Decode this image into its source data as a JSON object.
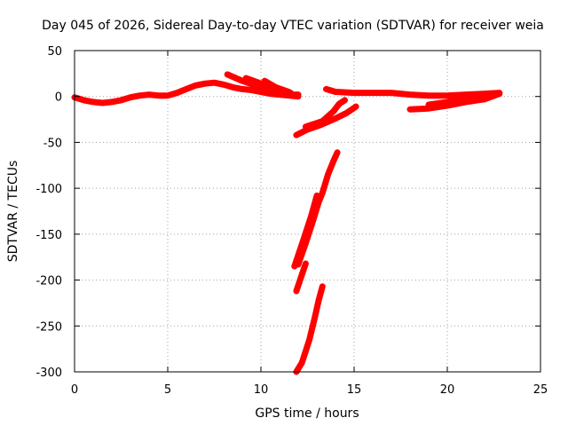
{
  "chart_data": {
    "type": "line",
    "title": "Day 045 of 2026, Sidereal Day-to-day VTEC variation (SDTVAR) for receiver weia",
    "xlabel": "GPS time / hours",
    "ylabel": "SDTVAR / TECUs",
    "xlim": [
      0,
      25
    ],
    "ylim": [
      -300,
      50
    ],
    "xticks": [
      0,
      5,
      10,
      15,
      20,
      25
    ],
    "yticks": [
      -300,
      -250,
      -200,
      -150,
      -100,
      -50,
      0,
      50
    ],
    "grid": true,
    "legend": "none",
    "series_color": "#ff0000",
    "series": [
      {
        "points": [
          [
            0.0,
            -1
          ],
          [
            0.5,
            -4
          ],
          [
            1.0,
            -6
          ],
          [
            1.5,
            -7
          ],
          [
            2.0,
            -6
          ],
          [
            2.5,
            -4
          ],
          [
            3.0,
            -1
          ],
          [
            3.5,
            1
          ],
          [
            4.0,
            2
          ],
          [
            4.5,
            1
          ],
          [
            5.0,
            1
          ],
          [
            5.5,
            4
          ],
          [
            6.0,
            8
          ],
          [
            6.5,
            12
          ],
          [
            7.0,
            14
          ],
          [
            7.5,
            15
          ],
          [
            8.0,
            13
          ],
          [
            8.5,
            10
          ],
          [
            9.0,
            8
          ],
          [
            9.5,
            7
          ],
          [
            10.0,
            5
          ],
          [
            10.5,
            3
          ],
          [
            11.0,
            2
          ],
          [
            11.5,
            1
          ],
          [
            12.0,
            0
          ]
        ]
      },
      {
        "points": [
          [
            8.2,
            24
          ],
          [
            9.0,
            17
          ],
          [
            10.0,
            10
          ],
          [
            11.0,
            5
          ]
        ]
      },
      {
        "points": [
          [
            9.2,
            20
          ],
          [
            10.0,
            14
          ],
          [
            11.0,
            7
          ],
          [
            11.6,
            4
          ]
        ]
      },
      {
        "points": [
          [
            10.2,
            17
          ],
          [
            10.8,
            10
          ],
          [
            11.5,
            5
          ]
        ]
      },
      {
        "points": [
          [
            11.0,
            6
          ],
          [
            11.6,
            2
          ],
          [
            12.0,
            2
          ]
        ]
      },
      {
        "points": [
          [
            13.5,
            8
          ],
          [
            14.0,
            5
          ],
          [
            15.0,
            4
          ],
          [
            16.0,
            4
          ],
          [
            17.0,
            4
          ],
          [
            18.0,
            2
          ],
          [
            19.0,
            1
          ],
          [
            20.0,
            1
          ],
          [
            21.0,
            2
          ],
          [
            22.0,
            3
          ],
          [
            22.8,
            4
          ]
        ]
      },
      {
        "points": [
          [
            18.0,
            -14
          ],
          [
            19.0,
            -13
          ],
          [
            20.0,
            -10
          ],
          [
            21.0,
            -6
          ],
          [
            22.0,
            -3
          ],
          [
            22.8,
            3
          ]
        ]
      },
      {
        "points": [
          [
            19.0,
            -9
          ],
          [
            20.0,
            -6
          ],
          [
            21.0,
            -2
          ],
          [
            22.0,
            2
          ]
        ]
      },
      {
        "points": [
          [
            11.9,
            -42
          ],
          [
            12.5,
            -36
          ],
          [
            13.2,
            -31
          ],
          [
            14.0,
            -24
          ],
          [
            14.6,
            -18
          ],
          [
            15.1,
            -11
          ]
        ]
      },
      {
        "points": [
          [
            12.4,
            -33
          ],
          [
            13.3,
            -27
          ],
          [
            13.9,
            -16
          ],
          [
            14.2,
            -8
          ],
          [
            14.5,
            -4
          ]
        ]
      },
      {
        "points": [
          [
            12.0,
            -183
          ],
          [
            12.4,
            -160
          ],
          [
            12.8,
            -135
          ],
          [
            13.1,
            -115
          ],
          [
            13.3,
            -105
          ],
          [
            13.6,
            -85
          ],
          [
            13.9,
            -70
          ],
          [
            14.1,
            -61
          ]
        ]
      },
      {
        "points": [
          [
            11.8,
            -185
          ],
          [
            12.3,
            -155
          ],
          [
            12.7,
            -130
          ],
          [
            13.0,
            -108
          ]
        ]
      },
      {
        "points": [
          [
            11.9,
            -212
          ],
          [
            12.1,
            -200
          ],
          [
            12.4,
            -182
          ]
        ]
      },
      {
        "points": [
          [
            11.9,
            -300
          ],
          [
            12.2,
            -290
          ],
          [
            12.6,
            -265
          ],
          [
            12.9,
            -240
          ],
          [
            13.1,
            -222
          ],
          [
            13.3,
            -207
          ]
        ]
      }
    ]
  }
}
